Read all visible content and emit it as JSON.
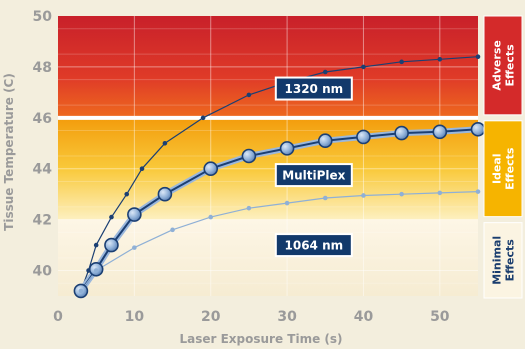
{
  "chart_data": {
    "type": "line",
    "xlabel": "Laser Exposure Time (s)",
    "ylabel": "Tissue Temperature (C)",
    "xlim": [
      0,
      55
    ],
    "ylim": [
      39,
      50
    ],
    "x_ticks": [
      0,
      10,
      20,
      30,
      40,
      50
    ],
    "y_ticks": [
      40,
      42,
      44,
      46,
      48,
      50
    ],
    "grid": true,
    "zones": [
      {
        "name": "Adverse Effects",
        "lines": [
          "Adverse",
          "Effects"
        ],
        "from": 46,
        "to": 50,
        "color": "#d42a2a",
        "text_color": "#ffffff"
      },
      {
        "name": "Ideal Effects",
        "lines": [
          "Ideal",
          "Effects"
        ],
        "from": 42,
        "to": 46,
        "color": "#f6b400",
        "text_color": "#ffffff"
      },
      {
        "name": "Minimal Effects",
        "lines": [
          "Minimal",
          "Effects"
        ],
        "from": 39,
        "to": 42,
        "color": "#fbf4e2",
        "text_color": "#1a3d6e"
      }
    ],
    "series": [
      {
        "name": "1320 nm",
        "color": "#1b3f73",
        "marker": "small",
        "x": [
          3,
          4,
          5,
          7,
          9,
          11,
          14,
          19,
          25,
          30,
          35,
          40,
          45,
          50,
          55
        ],
        "y": [
          39.2,
          40.0,
          41.0,
          42.1,
          43.0,
          44.0,
          45.0,
          46.0,
          46.9,
          47.4,
          47.8,
          48.0,
          48.2,
          48.3,
          48.4
        ]
      },
      {
        "name": "MultiPlex",
        "color": "#1b3f73",
        "marker": "large",
        "x": [
          3,
          5,
          7,
          10,
          14,
          20,
          25,
          30,
          35,
          40,
          45,
          50,
          55
        ],
        "y": [
          39.2,
          40.05,
          41.0,
          42.2,
          43.0,
          44.0,
          44.5,
          44.8,
          45.1,
          45.25,
          45.4,
          45.45,
          45.55
        ]
      },
      {
        "name": "1064 nm",
        "color": "#8fb0d6",
        "marker": "small",
        "x": [
          3,
          5,
          10,
          15,
          20,
          25,
          30,
          35,
          40,
          45,
          50,
          55
        ],
        "y": [
          39.2,
          40.0,
          40.9,
          41.6,
          42.1,
          42.45,
          42.65,
          42.85,
          42.95,
          43.0,
          43.05,
          43.1
        ]
      }
    ]
  }
}
